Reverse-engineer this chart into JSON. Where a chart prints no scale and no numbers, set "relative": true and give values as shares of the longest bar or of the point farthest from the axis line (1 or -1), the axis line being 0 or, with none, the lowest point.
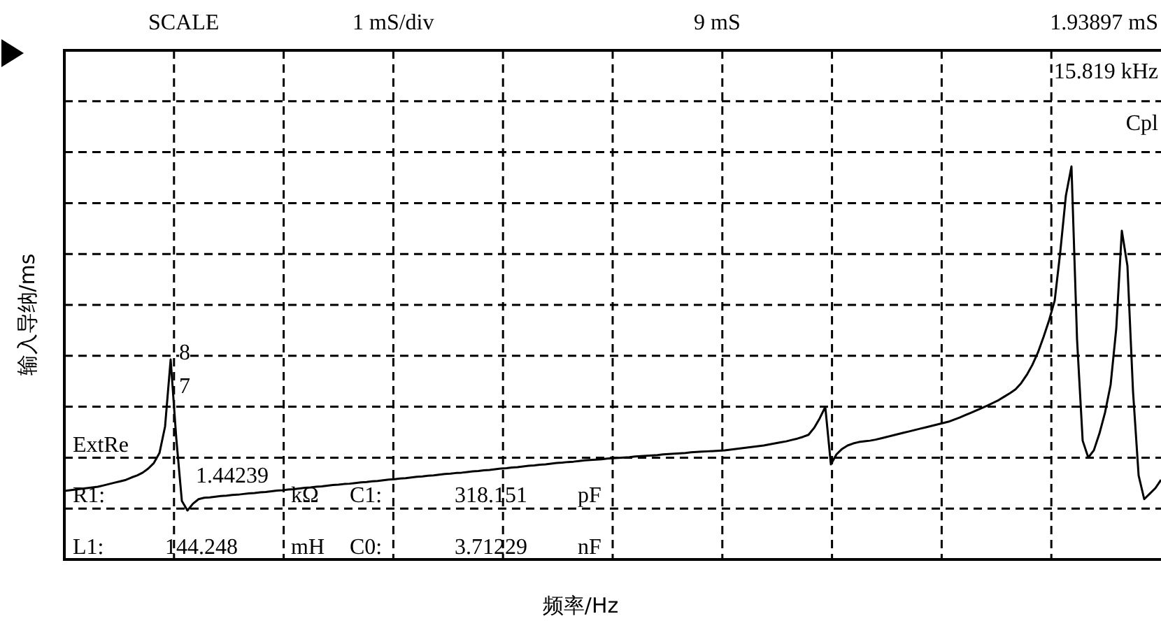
{
  "chart_data": {
    "type": "line",
    "xlabel": "频率/Hz",
    "ylabel": "输入导纳/ms",
    "relative": true,
    "grid": true,
    "marker": "none",
    "categories": [
      null,
      null,
      null,
      null,
      null,
      null,
      null,
      null,
      null,
      null,
      null,
      null,
      null,
      null,
      null,
      null,
      null,
      null,
      null,
      null,
      null,
      null,
      null,
      null,
      null,
      null,
      null,
      null,
      null,
      null,
      null,
      null,
      null,
      null,
      null,
      null,
      null,
      null,
      null,
      null,
      null,
      null,
      null,
      null,
      null,
      null,
      null,
      null,
      null,
      null,
      null,
      null,
      null,
      null,
      null,
      null,
      null,
      null,
      null,
      null,
      null,
      null,
      null,
      null,
      null,
      null,
      null,
      null,
      null,
      null,
      null,
      null,
      null,
      null,
      null,
      null,
      null,
      null,
      null,
      null,
      null,
      null,
      null,
      null,
      null,
      null,
      null,
      null,
      null,
      null,
      null,
      null,
      null,
      null,
      null,
      null,
      null,
      null,
      null,
      null,
      null,
      null,
      null,
      null,
      null,
      null,
      null,
      null,
      null,
      null,
      null,
      null,
      null,
      null,
      null,
      null,
      null,
      null,
      null,
      null,
      null,
      null,
      null,
      null,
      null,
      null,
      null,
      null,
      null,
      null,
      null,
      null,
      null,
      null,
      null,
      null,
      null,
      null,
      null,
      null,
      null,
      null,
      null,
      null,
      null,
      null,
      null,
      null,
      null,
      null,
      null,
      null,
      null,
      null,
      null,
      null,
      null,
      null,
      null,
      null,
      null,
      null,
      null,
      null,
      null,
      null,
      null,
      null,
      null,
      null,
      null,
      null,
      null,
      null,
      null,
      null,
      null,
      null,
      null,
      null,
      null,
      null,
      null,
      null,
      null,
      null,
      null,
      null,
      null,
      null,
      null,
      null,
      null,
      null,
      null,
      null,
      null
    ],
    "series": [
      {
        "color": "#000000",
        "values": [
          0.057,
          0.059,
          0.061,
          0.063,
          0.065,
          0.067,
          0.069,
          0.073,
          0.077,
          0.081,
          0.085,
          0.089,
          0.096,
          0.102,
          0.11,
          0.122,
          0.138,
          0.167,
          0.244,
          0.439,
          0.211,
          0.028,
          0,
          0.02,
          0.033,
          0.037,
          0.038,
          0.04,
          0.042,
          0.043,
          0.045,
          0.046,
          0.048,
          0.05,
          0.051,
          0.053,
          0.054,
          0.056,
          0.058,
          0.059,
          0.061,
          0.062,
          0.064,
          0.066,
          0.067,
          0.069,
          0.07,
          0.072,
          0.074,
          0.075,
          0.077,
          0.078,
          0.08,
          0.082,
          0.083,
          0.085,
          0.086,
          0.088,
          0.09,
          0.091,
          0.093,
          0.094,
          0.096,
          0.098,
          0.099,
          0.101,
          0.102,
          0.104,
          0.106,
          0.107,
          0.109,
          0.11,
          0.112,
          0.114,
          0.115,
          0.117,
          0.118,
          0.12,
          0.122,
          0.123,
          0.125,
          0.126,
          0.128,
          0.13,
          0.131,
          0.133,
          0.134,
          0.136,
          0.138,
          0.139,
          0.141,
          0.142,
          0.144,
          0.146,
          0.147,
          0.148,
          0.149,
          0.151,
          0.152,
          0.153,
          0.154,
          0.155,
          0.157,
          0.158,
          0.159,
          0.16,
          0.161,
          0.163,
          0.164,
          0.165,
          0.166,
          0.167,
          0.169,
          0.17,
          0.171,
          0.172,
          0.173,
          0.174,
          0.175,
          0.177,
          0.179,
          0.181,
          0.183,
          0.185,
          0.187,
          0.189,
          0.192,
          0.195,
          0.198,
          0.201,
          0.205,
          0.209,
          0.214,
          0.22,
          0.24,
          0.268,
          0.301,
          0.134,
          0.163,
          0.179,
          0.189,
          0.195,
          0.199,
          0.201,
          0.203,
          0.206,
          0.21,
          0.214,
          0.218,
          0.222,
          0.226,
          0.23,
          0.234,
          0.238,
          0.242,
          0.246,
          0.25,
          0.254,
          0.258,
          0.264,
          0.27,
          0.277,
          0.284,
          0.291,
          0.298,
          0.305,
          0.313,
          0.321,
          0.331,
          0.341,
          0.352,
          0.37,
          0.394,
          0.423,
          0.459,
          0.504,
          0.553,
          0.61,
          0.752,
          0.915,
          1.0,
          0.496,
          0.203,
          0.154,
          0.175,
          0.224,
          0.285,
          0.366,
          0.528,
          0.813,
          0.711,
          0.346,
          0.102,
          0.033,
          0.049,
          0.065,
          0.089
        ]
      }
    ],
    "annotations": [
      "SCALE",
      "1 mS/div",
      "9 mS",
      "1.93897 mS",
      "15.819 kHz",
      "Cpl",
      "8",
      "7",
      "ExtRe",
      "R1:",
      "1.44239",
      "kΩ",
      "C1:",
      "318.151",
      "pF",
      "L1:",
      "144.248",
      "mH",
      "C0:",
      "3.71229",
      "nF"
    ]
  }
}
